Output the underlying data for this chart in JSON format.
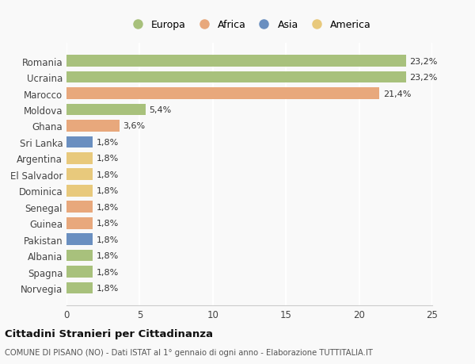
{
  "countries": [
    "Romania",
    "Ucraina",
    "Marocco",
    "Moldova",
    "Ghana",
    "Sri Lanka",
    "Argentina",
    "El Salvador",
    "Dominica",
    "Senegal",
    "Guinea",
    "Pakistan",
    "Albania",
    "Spagna",
    "Norvegia"
  ],
  "values": [
    23.2,
    23.2,
    21.4,
    5.4,
    3.6,
    1.8,
    1.8,
    1.8,
    1.8,
    1.8,
    1.8,
    1.8,
    1.8,
    1.8,
    1.8
  ],
  "labels": [
    "23,2%",
    "23,2%",
    "21,4%",
    "5,4%",
    "3,6%",
    "1,8%",
    "1,8%",
    "1,8%",
    "1,8%",
    "1,8%",
    "1,8%",
    "1,8%",
    "1,8%",
    "1,8%",
    "1,8%"
  ],
  "continents": [
    "Europa",
    "Europa",
    "Africa",
    "Europa",
    "Africa",
    "Asia",
    "America",
    "America",
    "America",
    "Africa",
    "Africa",
    "Asia",
    "Europa",
    "Europa",
    "Europa"
  ],
  "colors": {
    "Europa": "#a8c17c",
    "Africa": "#e8a87c",
    "Asia": "#6a8fc0",
    "America": "#e8c97c"
  },
  "legend_order": [
    "Europa",
    "Africa",
    "Asia",
    "America"
  ],
  "bg_color": "#f9f9f9",
  "grid_color": "#ffffff",
  "title": "Cittadini Stranieri per Cittadinanza",
  "subtitle": "COMUNE DI PISANO (NO) - Dati ISTAT al 1° gennaio di ogni anno - Elaborazione TUTTITALIA.IT",
  "xlim": [
    0,
    25
  ],
  "xticks": [
    0,
    5,
    10,
    15,
    20,
    25
  ],
  "label_fontsize": 8.0,
  "tick_fontsize": 8.5,
  "bar_height": 0.72
}
